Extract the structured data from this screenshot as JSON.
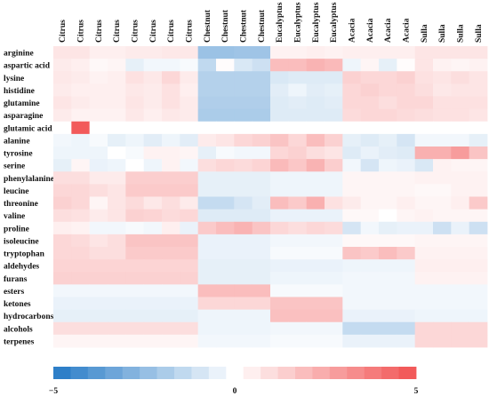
{
  "chart_data": {
    "type": "heatmap",
    "columns": [
      "Citrus",
      "Citrus",
      "Citrus",
      "Citrus",
      "Citrus",
      "Citrus",
      "Citrus",
      "Citrus",
      "Chestnut",
      "Chestnut",
      "Chestnut",
      "Chestnut",
      "Eucalyptus",
      "Eucalyptus",
      "Eucalyptus",
      "Eucalyptus",
      "Acacia",
      "Acacia",
      "Acacia",
      "Acacia",
      "Sulla",
      "Sulla",
      "Sulla",
      "Sulla"
    ],
    "rows": [
      "arginine",
      "aspartic acid",
      "lysine",
      "histidine",
      "glutamine",
      "asparagine",
      "glutamic acid",
      "alanine",
      "tyrosine",
      "serine",
      "phenylalanine",
      "leucine",
      "threonine",
      "valine",
      "proline",
      "isoleucine",
      "tryptophan",
      "aldehydes",
      "furans",
      "esters",
      "ketones",
      "hydrocarbons",
      "alcohols",
      "terpenes"
    ],
    "values": [
      [
        0.8,
        0.8,
        0.5,
        0.5,
        0.6,
        0.6,
        0.7,
        0.7,
        -2.4,
        -2.4,
        -2.3,
        -2.3,
        0.4,
        0.4,
        0.5,
        0.4,
        0.5,
        0.5,
        0.5,
        0.5,
        0.8,
        0.8,
        0.8,
        0.8
      ],
      [
        0.6,
        0.5,
        0.2,
        0.3,
        -0.6,
        -0.3,
        -0.3,
        -0.2,
        -1.5,
        0.1,
        -0.9,
        -1.2,
        2.0,
        2.0,
        2.3,
        2.1,
        -0.4,
        0.3,
        -0.6,
        0.1,
        0.8,
        0.4,
        0.3,
        0.4
      ],
      [
        0.7,
        0.6,
        0.4,
        0.5,
        0.9,
        0.7,
        1.2,
        0.6,
        -1.8,
        -1.8,
        -1.8,
        -1.8,
        -0.9,
        -0.8,
        -0.8,
        -0.8,
        1.4,
        1.2,
        1.2,
        1.4,
        0.9,
        0.8,
        1.0,
        0.8
      ],
      [
        0.6,
        0.5,
        0.5,
        0.5,
        0.7,
        0.6,
        0.9,
        0.5,
        -1.8,
        -1.8,
        -1.8,
        -1.8,
        -0.7,
        -0.4,
        -0.7,
        -0.6,
        1.2,
        1.4,
        1.2,
        1.2,
        1.0,
        0.7,
        0.8,
        0.8
      ],
      [
        0.8,
        0.6,
        0.5,
        0.5,
        0.8,
        0.6,
        0.9,
        0.6,
        -1.9,
        -1.9,
        -1.9,
        -1.9,
        -0.8,
        -0.7,
        -0.8,
        -0.7,
        1.2,
        1.2,
        1.0,
        1.2,
        1.2,
        0.9,
        0.9,
        0.9
      ],
      [
        0.6,
        0.4,
        0.4,
        0.4,
        0.7,
        0.5,
        0.7,
        0.6,
        -2.0,
        -2.0,
        -2.0,
        -2.0,
        -0.8,
        -0.8,
        -0.8,
        -0.8,
        1.1,
        1.2,
        1.2,
        1.1,
        1.0,
        0.9,
        0.9,
        0.8
      ],
      [
        0.0,
        5.0,
        0.0,
        0.0,
        0.0,
        0.0,
        0.0,
        0.0,
        0.0,
        0.0,
        0.0,
        0.0,
        0.0,
        0.0,
        0.0,
        0.0,
        0.0,
        0.0,
        0.0,
        0.0,
        0.0,
        0.0,
        0.0,
        0.0
      ],
      [
        -0.3,
        -0.4,
        -0.2,
        -0.6,
        -0.4,
        -0.7,
        -0.4,
        -0.7,
        0.6,
        0.8,
        1.2,
        1.4,
        1.8,
        1.2,
        2.0,
        1.4,
        -0.6,
        -0.8,
        -0.6,
        -1.0,
        -0.3,
        -0.3,
        -0.3,
        -0.6
      ],
      [
        -0.4,
        -0.4,
        -0.4,
        0.0,
        -0.2,
        0.4,
        0.4,
        0.3,
        -0.6,
        -0.2,
        -0.3,
        -0.3,
        1.2,
        1.4,
        1.0,
        0.8,
        -0.8,
        -0.5,
        -0.7,
        -0.8,
        2.4,
        2.4,
        3.0,
        1.8
      ],
      [
        -0.6,
        0.3,
        -0.5,
        -0.4,
        0.0,
        -0.4,
        0.4,
        -0.3,
        1.0,
        1.2,
        1.1,
        1.3,
        2.1,
        1.7,
        2.3,
        1.5,
        -0.3,
        -1.0,
        -0.4,
        -0.5,
        -0.9,
        0.4,
        0.3,
        0.3
      ],
      [
        1.0,
        1.0,
        0.6,
        0.6,
        1.5,
        1.5,
        1.5,
        1.5,
        -0.6,
        -0.6,
        -0.6,
        -0.6,
        -0.4,
        -0.4,
        -0.4,
        -0.4,
        0.3,
        0.3,
        0.3,
        0.3,
        0.4,
        0.4,
        0.4,
        0.4
      ],
      [
        1.2,
        1.2,
        1.0,
        0.8,
        1.6,
        1.6,
        1.6,
        1.6,
        -0.6,
        -0.6,
        -0.6,
        -0.6,
        -0.4,
        -0.4,
        -0.4,
        -0.4,
        0.3,
        0.3,
        0.3,
        0.3,
        0.2,
        0.2,
        0.4,
        0.4
      ],
      [
        1.4,
        1.2,
        0.3,
        0.8,
        1.1,
        0.7,
        1.0,
        0.6,
        -1.4,
        -1.4,
        -1.0,
        -0.7,
        2.0,
        1.6,
        2.4,
        0.9,
        0.6,
        0.3,
        0.3,
        0.5,
        0.3,
        0.3,
        0.5,
        1.6
      ],
      [
        1.0,
        0.9,
        0.6,
        0.8,
        1.4,
        1.3,
        1.1,
        1.2,
        -0.8,
        -0.8,
        -0.8,
        -0.8,
        -0.5,
        -0.5,
        -0.5,
        -0.5,
        0.2,
        0.2,
        0.0,
        0.3,
        0.4,
        0.3,
        0.3,
        0.3
      ],
      [
        0.5,
        0.4,
        -0.3,
        -0.3,
        -0.2,
        -0.3,
        0.5,
        -0.5,
        1.6,
        2.0,
        2.3,
        1.8,
        1.2,
        1.0,
        1.2,
        1.1,
        -1.0,
        -0.3,
        -0.6,
        -0.5,
        -0.5,
        -1.2,
        -0.5,
        -1.2
      ],
      [
        1.2,
        1.1,
        0.8,
        1.0,
        1.8,
        1.8,
        1.8,
        1.8,
        -0.5,
        -0.5,
        -0.5,
        -0.5,
        -0.3,
        -0.3,
        -0.3,
        -0.3,
        0.2,
        0.2,
        0.2,
        0.2,
        0.3,
        0.3,
        0.3,
        0.3
      ],
      [
        1.2,
        1.2,
        1.0,
        1.0,
        1.6,
        1.6,
        1.6,
        1.6,
        -0.5,
        -0.5,
        -0.5,
        -0.5,
        -0.2,
        -0.2,
        -0.2,
        -0.2,
        1.8,
        1.6,
        2.0,
        1.6,
        0.4,
        0.4,
        0.4,
        0.4
      ],
      [
        1.3,
        1.3,
        1.3,
        1.3,
        1.3,
        1.3,
        1.3,
        1.3,
        -0.6,
        -0.6,
        -0.6,
        -0.6,
        -0.5,
        -0.5,
        -0.5,
        -0.5,
        -0.4,
        -0.4,
        -0.4,
        -0.4,
        0.5,
        0.5,
        0.5,
        0.5
      ],
      [
        1.4,
        1.4,
        1.4,
        1.4,
        1.4,
        1.4,
        1.4,
        1.4,
        -0.6,
        -0.6,
        -0.6,
        -0.6,
        -0.4,
        -0.4,
        -0.4,
        -0.4,
        -0.3,
        -0.3,
        -0.3,
        -0.3,
        0.4,
        0.4,
        0.4,
        0.4
      ],
      [
        -0.3,
        -0.3,
        -0.3,
        -0.3,
        -0.3,
        -0.3,
        -0.3,
        -0.3,
        2.0,
        2.0,
        2.0,
        2.0,
        -0.2,
        -0.2,
        -0.2,
        -0.2,
        -0.3,
        -0.3,
        -0.3,
        -0.3,
        -0.3,
        -0.3,
        -0.3,
        -0.3
      ],
      [
        -0.5,
        -0.5,
        -0.5,
        -0.5,
        -0.5,
        -0.5,
        -0.5,
        -0.5,
        1.2,
        1.2,
        1.2,
        1.2,
        1.8,
        1.8,
        1.8,
        1.8,
        -0.3,
        -0.3,
        -0.3,
        -0.3,
        -0.3,
        -0.3,
        -0.3,
        -0.3
      ],
      [
        -0.6,
        -0.6,
        -0.6,
        -0.6,
        -0.6,
        -0.6,
        -0.6,
        -0.6,
        -0.4,
        -0.4,
        -0.4,
        -0.4,
        1.9,
        1.9,
        1.9,
        1.9,
        -0.5,
        -0.5,
        -0.5,
        -0.5,
        -0.4,
        -0.4,
        -0.4,
        -0.4
      ],
      [
        1.0,
        1.0,
        1.0,
        1.0,
        1.0,
        1.0,
        1.0,
        1.0,
        -0.4,
        -0.4,
        -0.4,
        -0.4,
        -0.3,
        -0.3,
        -0.3,
        -0.3,
        -1.4,
        -1.4,
        -1.4,
        -1.4,
        1.2,
        1.2,
        1.2,
        1.2
      ],
      [
        0.3,
        0.3,
        0.3,
        0.3,
        0.3,
        0.3,
        0.3,
        0.3,
        -0.3,
        -0.3,
        -0.3,
        -0.3,
        -0.2,
        -0.2,
        -0.2,
        -0.2,
        -0.5,
        -0.5,
        -0.5,
        -0.5,
        1.2,
        1.2,
        1.2,
        1.2
      ]
    ],
    "colorbar": {
      "min": -5,
      "max": 5,
      "steps": 21,
      "ticks": [
        -5,
        0,
        5
      ]
    },
    "colors": {
      "negative": "#2e7fc8",
      "zero": "#ffffff",
      "positive": "#f25a5a"
    },
    "title": "",
    "xlabel": "",
    "ylabel": ""
  }
}
